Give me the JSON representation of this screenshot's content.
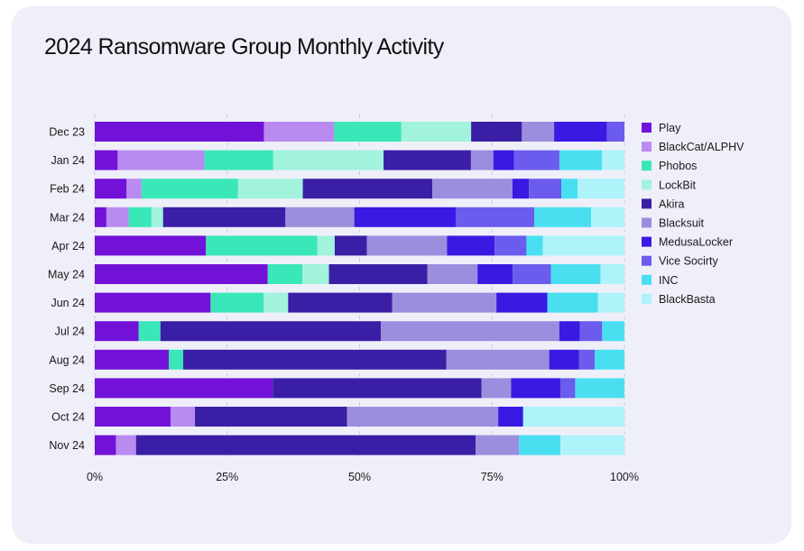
{
  "chart_data": {
    "type": "bar",
    "orientation": "horizontal",
    "stacked": true,
    "normalized": true,
    "title": "2024 Ransomware Group Monthly Activity",
    "categories": [
      "Dec 23",
      "Jan 24",
      "Feb 24",
      "Mar 24",
      "Apr 24",
      "May 24",
      "Jun 24",
      "Jul 24",
      "Aug 24",
      "Sep 24",
      "Oct 24",
      "Nov 24"
    ],
    "xlim": [
      0,
      100
    ],
    "x_ticks": [
      "0%",
      "25%",
      "50%",
      "75%",
      "100%"
    ],
    "grid": "vertical dashed",
    "legend_position": "right",
    "series": [
      {
        "name": "Play",
        "color": "#7212d8",
        "values": [
          32,
          4.3,
          6.0,
          2.2,
          21.0,
          32.5,
          21.8,
          8.3,
          14.0,
          33.6,
          14.3,
          4.0
        ]
      },
      {
        "name": "BlackCat/ALPHV",
        "color": "#b98af0",
        "values": [
          13.3,
          16.3,
          2.8,
          4.2,
          0,
          0,
          0,
          0,
          0,
          0,
          4.6,
          3.8
        ]
      },
      {
        "name": "Phobos",
        "color": "#3ae7b9",
        "values": [
          12.7,
          12.9,
          18.2,
          4.3,
          21.0,
          6.5,
          10.0,
          4.1,
          2.7,
          0,
          0,
          0
        ]
      },
      {
        "name": "LockBit",
        "color": "#a2f3dc",
        "values": [
          13.2,
          20.7,
          12.2,
          2.2,
          3.3,
          5.0,
          4.6,
          0,
          0,
          0,
          0,
          0
        ]
      },
      {
        "name": "Akira",
        "color": "#3b1ea6",
        "values": [
          9.6,
          16.4,
          24.4,
          23.1,
          6.1,
          18.5,
          19.6,
          41.6,
          49.7,
          39.4,
          28.7,
          64.2
        ]
      },
      {
        "name": "Blacksuit",
        "color": "#9c8ede",
        "values": [
          6.1,
          4.2,
          15.1,
          13.0,
          15.1,
          9.4,
          19.6,
          33.7,
          19.4,
          5.6,
          28.5,
          8.2
        ]
      },
      {
        "name": "MedusaLocker",
        "color": "#3a19e2",
        "values": [
          10.0,
          3.9,
          3.1,
          19.2,
          9.0,
          6.6,
          9.6,
          3.9,
          5.6,
          9.3,
          4.7,
          0
        ]
      },
      {
        "name": "Vice Socirty",
        "color": "#6b5ced",
        "values": [
          3.3,
          8.5,
          6.1,
          14.8,
          6.0,
          7.2,
          0,
          4.2,
          3.0,
          2.8,
          0,
          0
        ]
      },
      {
        "name": "INC",
        "color": "#49dff1",
        "values": [
          0,
          8.0,
          3.1,
          10.7,
          3.1,
          9.3,
          9.5,
          4.2,
          5.6,
          9.3,
          0,
          7.8
        ]
      },
      {
        "name": "BlackBasta",
        "color": "#aef3f9",
        "values": [
          0,
          4.2,
          8.8,
          6.3,
          15.4,
          4.5,
          5.0,
          0,
          0,
          0,
          19.1,
          12.1
        ]
      }
    ]
  }
}
